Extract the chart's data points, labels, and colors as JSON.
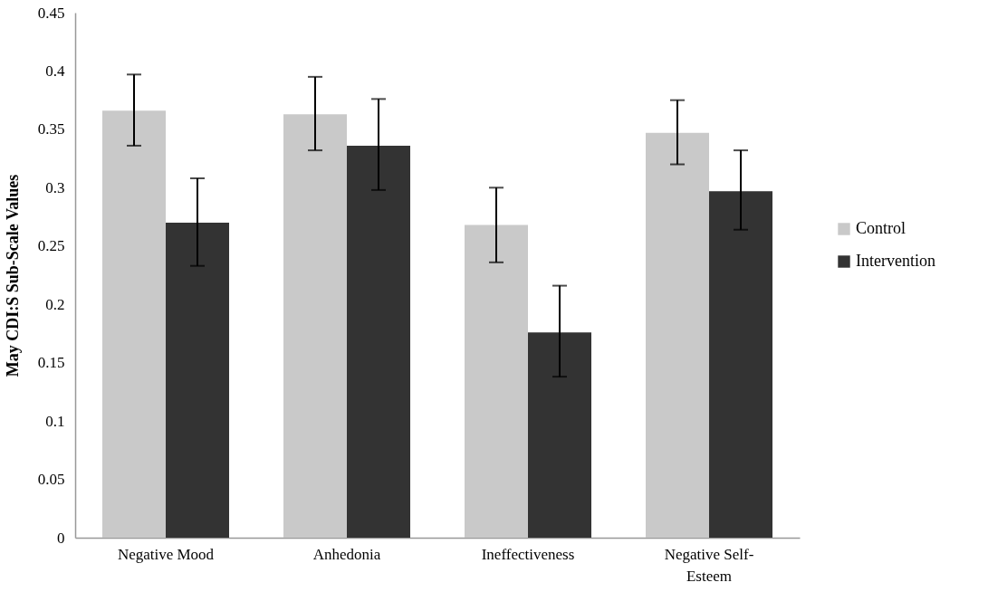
{
  "chart_data": {
    "type": "bar",
    "ylabel": "May CDI:S Sub-Scale Values",
    "categories": [
      "Negative Mood",
      "Anhedonia",
      "Ineffectiveness",
      "Negative Self-Esteem"
    ],
    "series": [
      {
        "name": "Control",
        "color": "#c9c9c9",
        "values": [
          0.366,
          0.363,
          0.268,
          0.347
        ],
        "errors": [
          [
            0.336,
            0.397
          ],
          [
            0.332,
            0.395
          ],
          [
            0.236,
            0.3
          ],
          [
            0.32,
            0.375
          ]
        ]
      },
      {
        "name": "Intervention",
        "color": "#333333",
        "values": [
          0.27,
          0.336,
          0.176,
          0.297
        ],
        "errors": [
          [
            0.233,
            0.308
          ],
          [
            0.298,
            0.376
          ],
          [
            0.138,
            0.216
          ],
          [
            0.264,
            0.332
          ]
        ]
      }
    ],
    "ylim": [
      0,
      0.45
    ],
    "yticks": [
      0,
      0.05,
      0.1,
      0.15,
      0.2,
      0.25,
      0.3,
      0.35,
      0.4,
      0.45
    ],
    "grid": false,
    "legend": "right"
  }
}
